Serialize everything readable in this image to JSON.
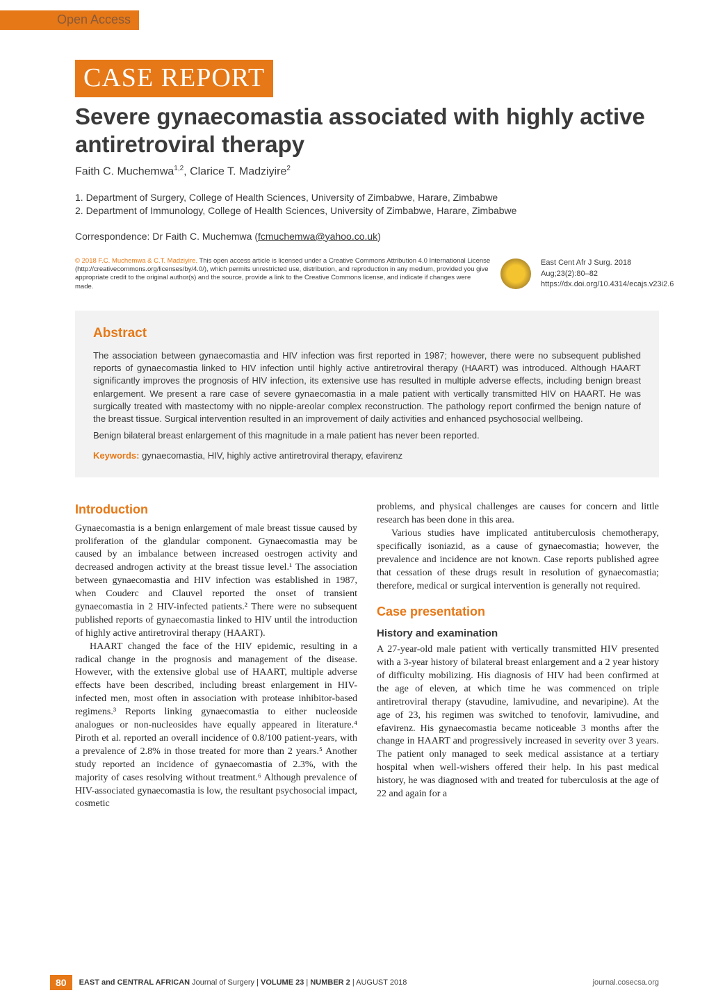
{
  "header": {
    "open_access": "Open Access",
    "badge": "CASE REPORT",
    "title": "Severe gynaecomastia associated with highly active antiretroviral therapy",
    "authors_html": "Faith C. Muchemwa<sup>1,2</sup>, Clarice T. Madziyire<sup>2</sup>",
    "affiliations": [
      "1. Department of Surgery, College of Health Sciences, University of Zimbabwe, Harare, Zimbabwe",
      "2. Department of Immunology, College of Health Sciences, University of Zimbabwe, Harare, Zimbabwe"
    ],
    "correspondence_prefix": "Correspondence: Dr Faith C. Muchemwa (",
    "correspondence_email": "fcmuchemwa@yahoo.co.uk",
    "correspondence_suffix": ")"
  },
  "license": {
    "copyright_orange": "© 2018 F.C. Muchemwa & C.T. Madziyire.",
    "text": " This open access article is licensed under a Creative Commons Attribution 4.0 International License (http://creativecommons.org/licenses/by/4.0/), which permits unrestricted use, distribution, and reproduction in any medium, provided you give appropriate credit to the original author(s) and the source, provide a link to the Creative Commons license, and indicate if changes were made.",
    "citation_line1": "East Cent Afr J Surg. 2018 Aug;23(2):80–82",
    "citation_line2": "https://dx.doi.org/10.4314/ecajs.v23i2.6"
  },
  "abstract": {
    "heading": "Abstract",
    "para1": "The association between gynaecomastia and HIV infection was first reported in 1987; however, there were no subsequent published reports of gynaecomastia linked to HIV infection until highly active antiretroviral therapy (HAART) was introduced. Although HAART significantly improves the prognosis of HIV infection, its extensive use has resulted in multiple adverse effects, including benign breast enlargement. We present a rare case of severe gynaecomastia in a male patient with vertically transmitted HIV on HAART. He was surgically treated with mastectomy with no nipple-areolar complex reconstruction. The pathology report confirmed the benign nature of the breast tissue. Surgical intervention resulted in an improvement of daily activities and enhanced psychosocial wellbeing.",
    "para2": "Benign bilateral breast enlargement of this magnitude in a male patient has never been reported.",
    "keywords_label": "Keywords:",
    "keywords": " gynaecomastia, HIV, highly active antiretroviral therapy, efavirenz"
  },
  "body": {
    "intro_heading": "Introduction",
    "intro_p1": "Gynaecomastia is a benign enlargement of male breast tissue caused by proliferation of the glandular component. Gynaecomastia may be caused by an imbalance between increased oestrogen activity and decreased androgen activity at the breast tissue level.¹ The association between gynaecomastia and HIV infection was established in 1987, when Couderc and Clauvel reported the onset of transient gynaecomastia in 2 HIV-infected patients.² There were no subsequent published reports of gynaecomastia linked to HIV until the introduction of highly active antiretroviral therapy (HAART).",
    "intro_p2": "HAART changed the face of the HIV epidemic, resulting in a radical change in the prognosis and management of the disease. However, with the extensive global use of HAART, multiple adverse effects have been described, including breast enlargement in HIV-infected men, most often in association with protease inhibitor-based regimens.³ Reports linking gynaecomastia to either nucleoside analogues or non-nucleosides have equally appeared in literature.⁴ Piroth et al. reported an overall incidence of 0.8/100 patient-years, with a prevalence of 2.8% in those treated for more than 2 years.⁵ Another study reported an incidence of gynaecomastia of 2.3%, with the majority of cases resolving without treatment.⁶ Although prevalence of HIV-associated gynaecomastia is low, the resultant psychosocial impact, cosmetic",
    "col2_p1": "problems, and physical challenges are causes for concern and little research has been done in this area.",
    "col2_p2": "Various studies have implicated antituberculosis chemotherapy, specifically isoniazid, as a cause of gynaecomastia; however, the prevalence and incidence are not known. Case reports published agree that cessation of these drugs result in resolution of gynaecomastia; therefore, medical or surgical intervention is generally not required.",
    "case_heading": "Case presentation",
    "case_sub": "History and examination",
    "case_p1": "A 27-year-old male patient with vertically transmitted HIV presented with a 3-year history of bilateral breast enlargement and a 2 year history of difficulty mobilizing. His diagnosis of HIV had been confirmed at the age of eleven, at which time he was commenced on triple antiretroviral therapy (stavudine, lamivudine, and nevaripine). At the age of 23, his regimen was switched to tenofovir, lamivudine, and efavirenz. His gynaecomastia became noticeable 3 months after the change in HAART and progressively increased in severity over 3 years. The patient only managed to seek medical assistance at a tertiary hospital when well-wishers offered their help. In his past medical history, he was diagnosed with and treated for tuberculosis at the age of 22 and again for a"
  },
  "footer": {
    "page_num": "80",
    "journal_bold1": "EAST and CENTRAL AFRICAN",
    "journal_plain": " Journal of Surgery | ",
    "vol_bold": "VOLUME 23",
    "sep": " | ",
    "num_bold": "NUMBER 2",
    "date": " | AUGUST 2018",
    "url": "journal.cosecsa.org"
  },
  "colors": {
    "accent": "#e67817",
    "page_bg": "#ffffff",
    "abstract_bg": "#f2f2f2",
    "text": "#3a3a3a"
  }
}
